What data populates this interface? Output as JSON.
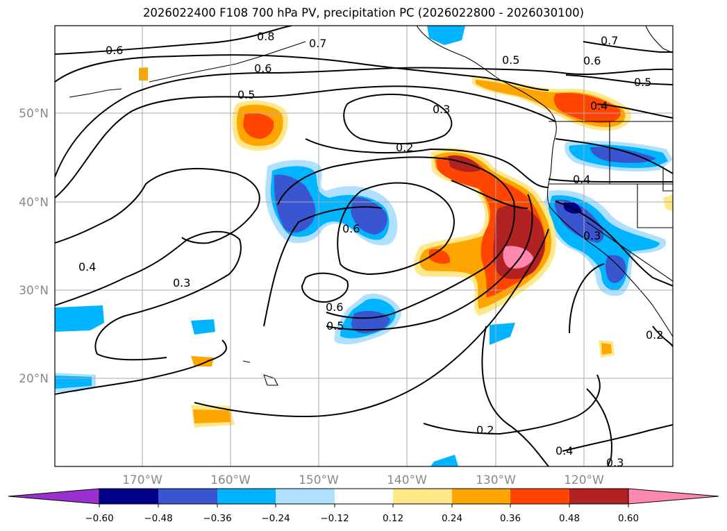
{
  "title": "2026022400 F108 700 hPa PV, precipitation PC (2026022800 - 2026030100)",
  "map": {
    "lon_labels": [
      "170°W",
      "160°W",
      "150°W",
      "140°W",
      "130°W",
      "120°W"
    ],
    "lat_labels": [
      "50°N",
      "40°N",
      "30°N",
      "20°N"
    ]
  },
  "contour_labels": [
    "0.8",
    "0.7",
    "0.6",
    "0.6",
    "0.5",
    "0.5",
    "0.3",
    "0.2",
    "0.7",
    "0.6",
    "0.5",
    "0.4",
    "0.4",
    "0.6",
    "0.4",
    "0.3",
    "0.6",
    "0.5",
    "0.3",
    "0.2",
    "0.2",
    "0.4",
    "0.3"
  ],
  "colorbar": {
    "tick_labels": [
      "−0.60",
      "−0.48",
      "−0.36",
      "−0.24",
      "−0.12",
      "0.12",
      "0.24",
      "0.36",
      "0.48",
      "0.60"
    ],
    "colors": [
      "#9b30d0",
      "#00008b",
      "#3a55d0",
      "#00b4ff",
      "#b0e0ff",
      "#ffffff",
      "#ffe88a",
      "#ffa500",
      "#ff4500",
      "#b22222",
      "#ff88b0"
    ]
  }
}
